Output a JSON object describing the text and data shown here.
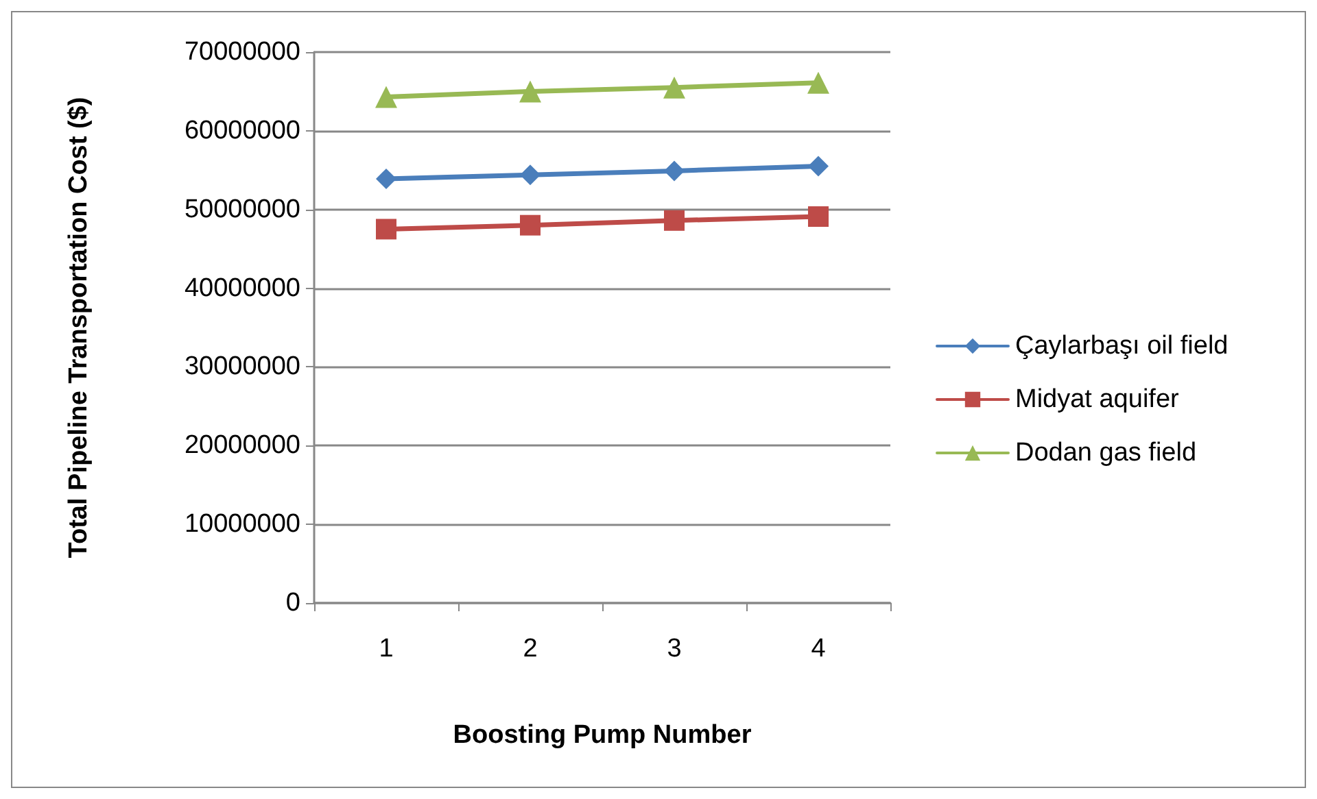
{
  "chart_data": {
    "type": "line",
    "xlabel": "Boosting Pump Number",
    "ylabel": "Total Pipeline Transportation Cost ($)",
    "categories": [
      "1",
      "2",
      "3",
      "4"
    ],
    "series": [
      {
        "name": "Çaylarbaşı oil field",
        "color": "#4a7ebb",
        "marker": "diamond",
        "values": [
          53900000,
          54400000,
          54900000,
          55500000
        ]
      },
      {
        "name": "Midyat aquifer",
        "color": "#be4b48",
        "marker": "square",
        "values": [
          47500000,
          48000000,
          48600000,
          49100000
        ]
      },
      {
        "name": "Dodan gas field",
        "color": "#98b954",
        "marker": "triangle",
        "values": [
          64300000,
          65000000,
          65500000,
          66100000
        ]
      }
    ],
    "ylim": [
      0,
      70000000
    ],
    "yticks": [
      0,
      10000000,
      20000000,
      30000000,
      40000000,
      50000000,
      60000000,
      70000000
    ],
    "grid": "y",
    "legend": "right"
  }
}
